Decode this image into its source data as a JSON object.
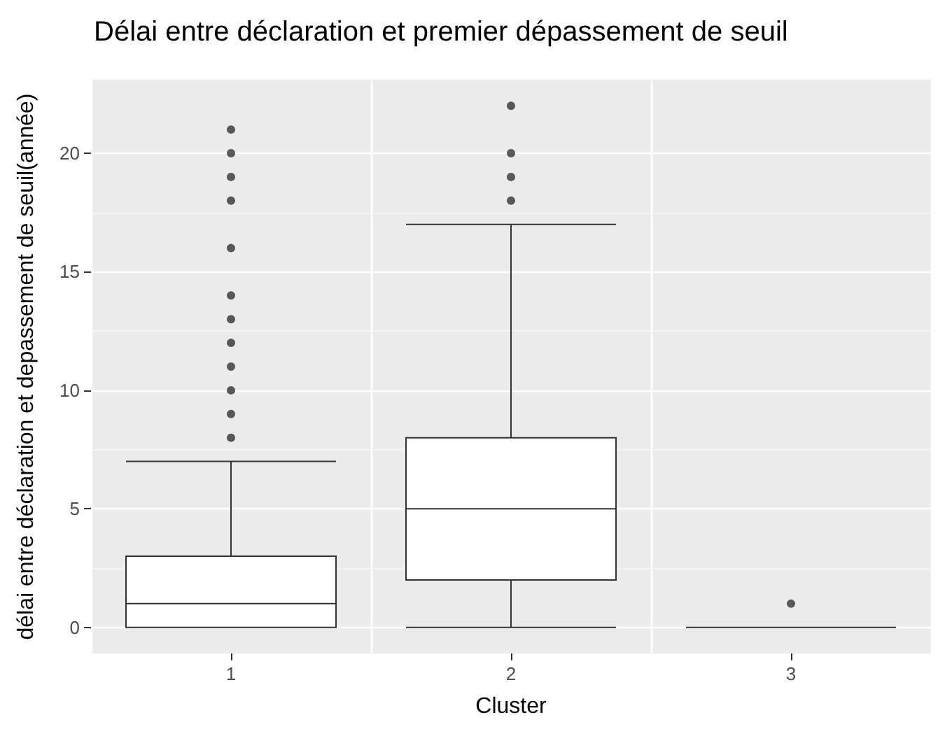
{
  "chart_data": {
    "type": "box",
    "title": "Délai entre déclaration et premier dépassement de seuil",
    "xlabel": "Cluster",
    "ylabel": "délai entre déclaration et depassement de seuil(année)",
    "categories": [
      "1",
      "2",
      "3"
    ],
    "boxes": [
      {
        "low": 0,
        "q1": 0,
        "median": 1,
        "q3": 3,
        "high": 7,
        "outliers": [
          8,
          9,
          10,
          11,
          12,
          13,
          14,
          16,
          18,
          19,
          20,
          21
        ]
      },
      {
        "low": 0,
        "q1": 2,
        "median": 5,
        "q3": 8,
        "high": 17,
        "outliers": [
          18,
          19,
          20,
          22
        ]
      },
      {
        "low": 0,
        "q1": 0,
        "median": 0,
        "q3": 0,
        "high": 0,
        "outliers": [
          1
        ]
      }
    ],
    "color": "#333333",
    "marker": "circle",
    "ylim": [
      -1.1,
      23.1
    ],
    "yticks": [
      0,
      5,
      10,
      15,
      20
    ],
    "grid": true
  }
}
